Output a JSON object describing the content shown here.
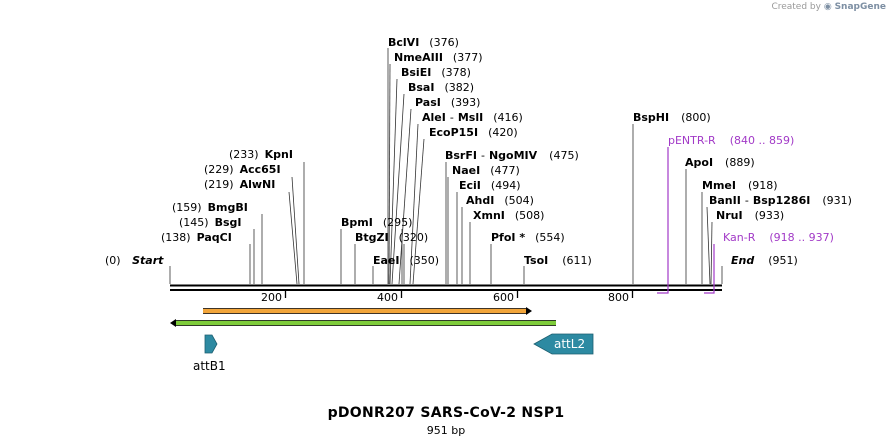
{
  "credit": {
    "prefix": "Created by",
    "brand": "SnapGene"
  },
  "title": "pDONR207 SARS-CoV-2 NSP1",
  "length_label": "951 bp",
  "sequence": {
    "length": 951,
    "start_label": "Start",
    "start_pos": "(0)",
    "end_label": "End",
    "end_pos": "(951)"
  },
  "ruler": [
    "200",
    "400",
    "600",
    "800"
  ],
  "colors": {
    "enzyme": "#000000",
    "primer": "#a23ac7",
    "feature_fill": "#2d8aa2",
    "orf_orange": "#f2a53a",
    "orf_green": "#7ecc3a"
  },
  "enzymes": [
    {
      "name": "PaqCI",
      "pos": "(138)"
    },
    {
      "name": "BsgI",
      "pos": "(145)"
    },
    {
      "name": "BmgBI",
      "pos": "(159)"
    },
    {
      "name": "AlwNI",
      "pos": "(219)"
    },
    {
      "name": "Acc65I",
      "pos": "(229)"
    },
    {
      "name": "KpnI",
      "pos": "(233)"
    },
    {
      "name": "BpmI",
      "pos": "(295)"
    },
    {
      "name": "BtgZI",
      "pos": "(320)"
    },
    {
      "name": "EaeI",
      "pos": "(350)"
    },
    {
      "name": "BclVI",
      "pos": "(376)"
    },
    {
      "name": "NmeAIII",
      "pos": "(377)"
    },
    {
      "name": "BsiEI",
      "pos": "(378)"
    },
    {
      "name": "BsaI",
      "pos": "(382)"
    },
    {
      "name": "PasI",
      "pos": "(393)"
    },
    {
      "name": "AleI",
      "name2": "MslI",
      "pos": "(416)"
    },
    {
      "name": "EcoP15I",
      "pos": "(420)"
    },
    {
      "name": "BsrFI",
      "name2": "NgoMIV",
      "pos": "(475)"
    },
    {
      "name": "NaeI",
      "pos": "(477)"
    },
    {
      "name": "EciI",
      "pos": "(494)"
    },
    {
      "name": "AhdI",
      "pos": "(504)"
    },
    {
      "name": "XmnI",
      "pos": "(508)"
    },
    {
      "name": "PfoI *",
      "pos": "(554)"
    },
    {
      "name": "TsoI",
      "pos": "(611)"
    },
    {
      "name": "BspHI",
      "pos": "(800)"
    },
    {
      "name": "ApoI",
      "pos": "(889)"
    },
    {
      "name": "MmeI",
      "pos": "(918)"
    },
    {
      "name": "BanII",
      "name2": "Bsp1286I",
      "pos": "(931)"
    },
    {
      "name": "NruI",
      "pos": "(933)"
    }
  ],
  "primers": [
    {
      "name": "pENTR-R",
      "range": "(840 .. 859)"
    },
    {
      "name": "Kan-R",
      "range": "(918 .. 937)"
    }
  ],
  "features": [
    {
      "name": "attB1"
    },
    {
      "name": "attL2"
    }
  ]
}
